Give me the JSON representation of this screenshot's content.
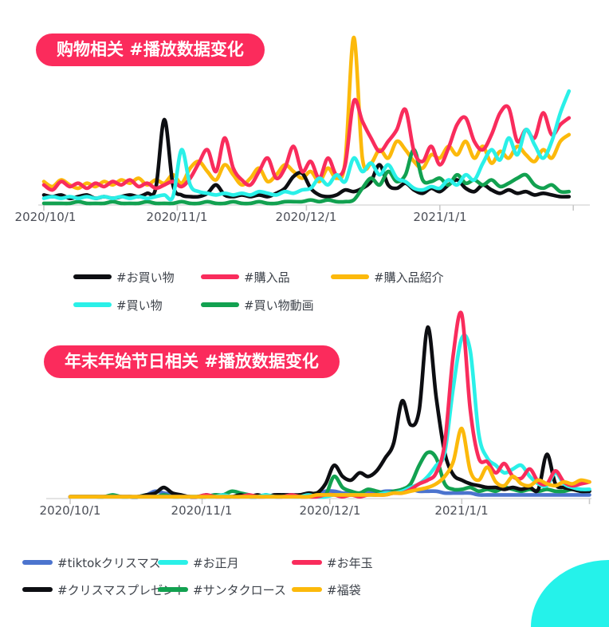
{
  "accent": {
    "badge_color": "#fb2b5c",
    "axis_color": "#dcdcdc",
    "tick_color": "#c9c9c9"
  },
  "decoration": {
    "corner_color": "#25f2ea"
  },
  "charts": [
    {
      "badge": "购物相关 #播放数据变化",
      "chart_data": {
        "type": "line",
        "title": "购物相关 #播放数据变化",
        "x_start_date": "2020/10/1",
        "x_end_date": "2021/1/31",
        "sample_interval_days": 2,
        "x_tick_labels": [
          "2020/10/1",
          "2020/11/1",
          "2020/12/1",
          "2021/1/1"
        ],
        "x_tick_days": [
          0,
          31,
          61,
          92
        ],
        "ylim": [
          0,
          100
        ],
        "grid": false,
        "legend_position": "below",
        "series": [
          {
            "name": "#お買い物",
            "color": "#0d0e12",
            "z": 2,
            "values": [
              6,
              5,
              6,
              4,
              5,
              6,
              4,
              5,
              4,
              5,
              6,
              5,
              7,
              10,
              51,
              12,
              6,
              5,
              5,
              7,
              12,
              6,
              5,
              6,
              5,
              6,
              5,
              7,
              10,
              17,
              19,
              10,
              6,
              5,
              6,
              9,
              8,
              10,
              14,
              24,
              12,
              10,
              13,
              9,
              7,
              10,
              8,
              12,
              15,
              10,
              8,
              12,
              9,
              7,
              9,
              7,
              8,
              6,
              7,
              6,
              5,
              5
            ]
          },
          {
            "name": "#購入品",
            "color": "#f92c5c",
            "z": 4,
            "values": [
              12,
              9,
              14,
              11,
              13,
              10,
              13,
              11,
              14,
              12,
              15,
              11,
              13,
              10,
              12,
              14,
              11,
              16,
              25,
              33,
              20,
              40,
              22,
              15,
              12,
              20,
              28,
              16,
              22,
              35,
              20,
              26,
              16,
              28,
              18,
              24,
              62,
              50,
              40,
              32,
              38,
              45,
              57,
              32,
              26,
              35,
              24,
              34,
              48,
              52,
              38,
              33,
              42,
              55,
              58,
              38,
              45,
              40,
              55,
              42,
              48,
              52
            ]
          },
          {
            "name": "#購入品紹介",
            "color": "#fcb90b",
            "z": 1,
            "values": [
              14,
              11,
              15,
              12,
              10,
              13,
              11,
              14,
              12,
              15,
              13,
              16,
              12,
              15,
              13,
              18,
              13,
              22,
              26,
              20,
              15,
              24,
              18,
              12,
              16,
              22,
              14,
              18,
              24,
              20,
              16,
              20,
              14,
              22,
              16,
              26,
              100,
              28,
              25,
              33,
              28,
              38,
              33,
              26,
              22,
              30,
              28,
              35,
              30,
              38,
              28,
              35,
              25,
              32,
              28,
              35,
              30,
              26,
              33,
              28,
              38,
              42
            ]
          },
          {
            "name": "#買い物",
            "color": "#2af0e8",
            "z": 5,
            "values": [
              4,
              5,
              4,
              5,
              4,
              5,
              4,
              5,
              4,
              5,
              4,
              5,
              4,
              5,
              6,
              5,
              33,
              12,
              8,
              7,
              6,
              7,
              6,
              7,
              6,
              8,
              7,
              6,
              8,
              7,
              9,
              10,
              16,
              12,
              18,
              14,
              28,
              20,
              25,
              18,
              24,
              16,
              14,
              10,
              9,
              11,
              10,
              15,
              12,
              18,
              15,
              25,
              33,
              27,
              40,
              30,
              45,
              36,
              28,
              38,
              55,
              68
            ]
          },
          {
            "name": "#買い物動画",
            "color": "#12a150",
            "z": 3,
            "values": [
              1,
              1,
              1,
              1,
              2,
              1,
              1,
              1,
              2,
              1,
              1,
              1,
              2,
              1,
              1,
              1,
              2,
              1,
              1,
              2,
              1,
              1,
              2,
              1,
              1,
              2,
              1,
              1,
              2,
              2,
              2,
              3,
              2,
              3,
              2,
              2,
              3,
              10,
              16,
              12,
              20,
              14,
              18,
              33,
              15,
              14,
              16,
              12,
              18,
              13,
              15,
              12,
              15,
              11,
              13,
              16,
              18,
              12,
              10,
              12,
              8,
              8
            ]
          }
        ]
      }
    },
    {
      "badge": "年末年始节日相关 #播放数据变化",
      "chart_data": {
        "type": "line",
        "title": "年末年始节日相关 #播放数据变化",
        "x_start_date": "2020/10/1",
        "x_end_date": "2021/1/31",
        "sample_interval_days": 2,
        "x_tick_labels": [
          "2020/10/1",
          "2020/11/1",
          "2020/12/1",
          "2021/1/1"
        ],
        "x_tick_days": [
          0,
          31,
          61,
          92
        ],
        "ylim": [
          0,
          100
        ],
        "grid": false,
        "legend_position": "below",
        "series": [
          {
            "name": "#tiktokクリスマス",
            "color": "#4c74ce",
            "z": 1,
            "values": [
              1,
              1,
              1,
              1,
              1,
              1,
              1,
              1,
              1,
              2,
              4,
              3,
              2,
              1,
              1,
              1,
              1,
              2,
              1,
              1,
              2,
              1,
              1,
              2,
              1,
              2,
              1,
              2,
              2,
              2,
              4,
              4,
              3,
              3,
              3,
              4,
              3,
              4,
              4,
              4,
              5,
              4,
              4,
              4,
              3,
              3,
              3,
              3,
              2,
              2,
              2,
              2,
              2,
              2,
              2,
              2,
              2,
              2,
              2,
              2,
              2,
              2
            ]
          },
          {
            "name": "#お正月",
            "color": "#2af0e8",
            "z": 4,
            "values": [
              1,
              1,
              1,
              1,
              1,
              1,
              1,
              1,
              1,
              1,
              1,
              1,
              1,
              1,
              1,
              1,
              1,
              1,
              2,
              1,
              1,
              1,
              1,
              2,
              1,
              1,
              1,
              1,
              2,
              1,
              1,
              2,
              2,
              2,
              2,
              2,
              2,
              3,
              3,
              4,
              6,
              8,
              12,
              18,
              25,
              60,
              87,
              80,
              35,
              22,
              18,
              14,
              16,
              18,
              12,
              8,
              7,
              14,
              8,
              6,
              5,
              5
            ]
          },
          {
            "name": "#お年玉",
            "color": "#f92c5c",
            "z": 5,
            "values": [
              1,
              1,
              1,
              1,
              1,
              1,
              1,
              1,
              1,
              1,
              1,
              1,
              1,
              1,
              1,
              1,
              2,
              1,
              1,
              1,
              1,
              2,
              1,
              1,
              1,
              1,
              2,
              1,
              1,
              1,
              2,
              2,
              1,
              2,
              1,
              2,
              2,
              2,
              3,
              3,
              5,
              8,
              10,
              14,
              30,
              78,
              100,
              48,
              22,
              20,
              14,
              19,
              12,
              11,
              16,
              9,
              8,
              15,
              9,
              7,
              8,
              9
            ]
          },
          {
            "name": "#クリスマスプレゼント",
            "color": "#0d0e12",
            "z": 3,
            "values": [
              1,
              1,
              1,
              1,
              1,
              1,
              1,
              1,
              1,
              2,
              3,
              6,
              3,
              2,
              1,
              1,
              2,
              1,
              2,
              1,
              2,
              1,
              2,
              1,
              2,
              2,
              2,
              2,
              3,
              3,
              8,
              18,
              12,
              10,
              14,
              12,
              15,
              22,
              30,
              53,
              40,
              48,
              93,
              55,
              25,
              13,
              10,
              8,
              7,
              6,
              6,
              5,
              6,
              5,
              6,
              5,
              24,
              8,
              6,
              5,
              4,
              4
            ]
          },
          {
            "name": "#サンタクロース",
            "color": "#12a150",
            "z": 2,
            "values": [
              1,
              1,
              1,
              1,
              1,
              2,
              1,
              1,
              1,
              2,
              1,
              2,
              1,
              1,
              1,
              1,
              1,
              2,
              2,
              4,
              3,
              2,
              1,
              2,
              1,
              2,
              1,
              2,
              2,
              3,
              2,
              12,
              6,
              4,
              3,
              5,
              4,
              3,
              4,
              5,
              8,
              18,
              25,
              22,
              8,
              5,
              5,
              6,
              4,
              5,
              4,
              6,
              5,
              4,
              5,
              4,
              5,
              4,
              4,
              5,
              4,
              4
            ]
          },
          {
            "name": "#福袋",
            "color": "#fcb90b",
            "z": 6,
            "values": [
              1,
              1,
              1,
              1,
              1,
              1,
              1,
              1,
              1,
              1,
              1,
              1,
              1,
              1,
              1,
              1,
              1,
              1,
              1,
              1,
              1,
              1,
              1,
              1,
              1,
              1,
              1,
              1,
              1,
              2,
              2,
              2,
              2,
              2,
              2,
              2,
              2,
              2,
              3,
              3,
              4,
              5,
              6,
              8,
              12,
              20,
              38,
              15,
              10,
              17,
              9,
              7,
              12,
              8,
              7,
              10,
              8,
              7,
              9,
              8,
              10,
              9
            ]
          }
        ]
      }
    }
  ]
}
